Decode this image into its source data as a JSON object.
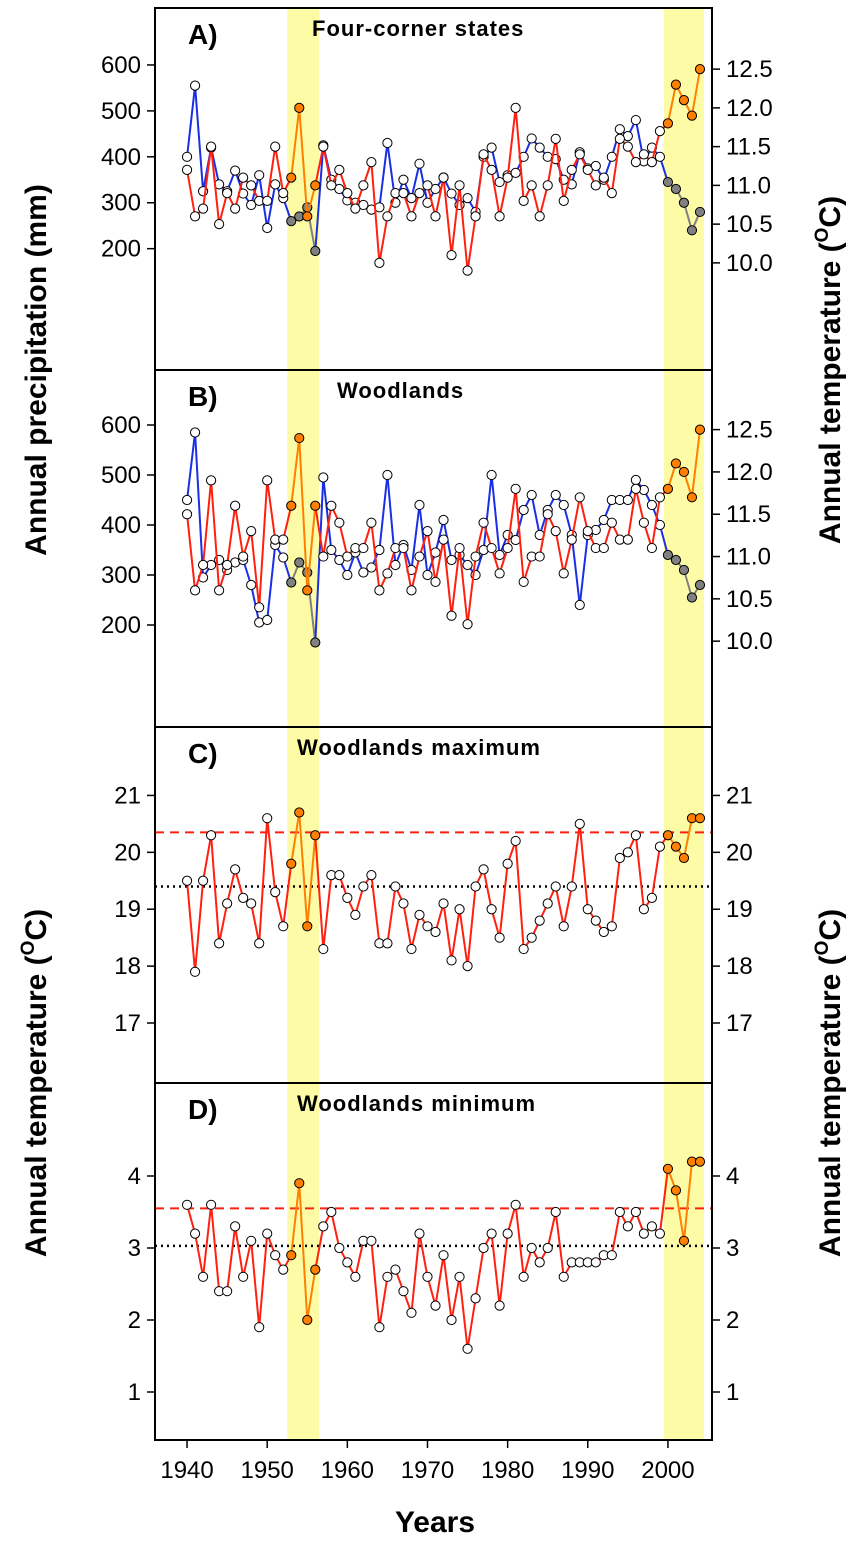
{
  "chart_data": {
    "type": "line",
    "x_label": "Years",
    "x_ticks": [
      1940,
      1950,
      1960,
      1970,
      1980,
      1990,
      2000
    ],
    "x_range": [
      1936,
      2005.5
    ],
    "highlight_ranges": [
      [
        1952.5,
        1956.5
      ],
      [
        1999.5,
        2004.5
      ]
    ],
    "colors": {
      "temperature": "#ff2010",
      "precipitation": "#1a2fe6",
      "drought_temperature": "#ff7f00",
      "drought_precipitation": "#808080",
      "highlight": "#fdfba5",
      "mean_line": "#000000",
      "threshold_line": "#ff2010"
    },
    "left_axis_label": {
      "top": "Annual precipitation (mm)",
      "bottom_prefix": "Annual temperature (",
      "bottom_sup": "O",
      "bottom_suffix": "C)"
    },
    "right_axis_label": {
      "top_prefix": "Annual temperature (",
      "top_sup": "O",
      "top_suffix": "C)",
      "bottom_prefix": "Annual temperature (",
      "bottom_sup": "O",
      "bottom_suffix": "C)"
    },
    "panels": [
      {
        "label": "A)",
        "title": "Four-corner states",
        "left_ticks": [
          "600",
          "500",
          "400",
          "300",
          "200"
        ],
        "right_ticks": [
          "12.5",
          "12.0",
          "11.5",
          "11.0",
          "10.5",
          "10.0"
        ],
        "left_range": [
          110,
          650
        ],
        "right_range": [
          9.65,
          12.85
        ],
        "series": [
          {
            "name": "Annual temperature",
            "axis": "right",
            "x": [
              1940,
              1941,
              1942,
              1943,
              1944,
              1945,
              1946,
              1947,
              1948,
              1949,
              1950,
              1951,
              1952,
              1953,
              1954,
              1955,
              1956,
              1957,
              1958,
              1959,
              1960,
              1961,
              1962,
              1963,
              1964,
              1965,
              1966,
              1967,
              1968,
              1969,
              1970,
              1971,
              1972,
              1973,
              1974,
              1975,
              1976,
              1977,
              1978,
              1979,
              1980,
              1981,
              1982,
              1983,
              1984,
              1985,
              1986,
              1987,
              1988,
              1989,
              1990,
              1991,
              1992,
              1993,
              1994,
              1995,
              1996,
              1997,
              1998,
              1999,
              2000,
              2001,
              2002,
              2003,
              2004
            ],
            "y": [
              11.2,
              10.6,
              10.7,
              11.5,
              10.5,
              10.9,
              10.7,
              11.1,
              11.0,
              10.8,
              10.8,
              11.5,
              10.9,
              11.1,
              12.0,
              10.6,
              11.0,
              11.5,
              11.0,
              11.2,
              10.9,
              10.7,
              11.0,
              11.3,
              10.0,
              10.6,
              10.9,
              10.9,
              10.6,
              10.9,
              11.0,
              10.6,
              11.1,
              10.1,
              11.0,
              9.9,
              10.6,
              11.4,
              11.2,
              10.6,
              11.1,
              12.0,
              10.8,
              11.0,
              10.6,
              11.0,
              11.6,
              10.8,
              11.2,
              11.4,
              11.2,
              11.0,
              11.1,
              10.9,
              11.6,
              11.5,
              11.3,
              11.4,
              11.3,
              11.7,
              11.8,
              12.3,
              12.1,
              11.9,
              12.5
            ]
          },
          {
            "name": "Annual precipitation",
            "axis": "left",
            "x": [
              1940,
              1941,
              1942,
              1943,
              1944,
              1945,
              1946,
              1947,
              1948,
              1949,
              1950,
              1951,
              1952,
              1953,
              1954,
              1955,
              1956,
              1957,
              1958,
              1959,
              1960,
              1961,
              1962,
              1963,
              1964,
              1965,
              1966,
              1967,
              1968,
              1969,
              1970,
              1971,
              1972,
              1973,
              1974,
              1975,
              1976,
              1977,
              1978,
              1979,
              1980,
              1981,
              1982,
              1983,
              1984,
              1985,
              1986,
              1987,
              1988,
              1989,
              1990,
              1991,
              1992,
              1993,
              1994,
              1995,
              1996,
              1997,
              1998,
              1999,
              2000,
              2001,
              2002,
              2003,
              2004
            ],
            "y": [
              400,
              555,
              325,
              420,
              340,
              325,
              370,
              320,
              295,
              360,
              245,
              340,
              310,
              260,
              270,
              290,
              195,
              425,
              350,
              330,
              305,
              300,
              295,
              285,
              290,
              430,
              300,
              350,
              310,
              385,
              300,
              330,
              355,
              320,
              295,
              310,
              280,
              400,
              420,
              345,
              360,
              365,
              400,
              440,
              420,
              400,
              395,
              350,
              340,
              410,
              375,
              380,
              350,
              400,
              460,
              445,
              480,
              390,
              420,
              400,
              345,
              330,
              300,
              240,
              280
            ]
          }
        ]
      },
      {
        "label": "B)",
        "title": "Woodlands",
        "left_ticks": [
          "600",
          "500",
          "400",
          "300",
          "200"
        ],
        "right_ticks": [
          "12.5",
          "12.0",
          "11.5",
          "11.0",
          "10.5",
          "10.0"
        ],
        "left_range": [
          100,
          650
        ],
        "right_range": [
          9.6,
          12.85
        ],
        "series": [
          {
            "name": "Annual temperature",
            "axis": "right",
            "x": [
              1940,
              1941,
              1942,
              1943,
              1944,
              1945,
              1946,
              1947,
              1948,
              1949,
              1950,
              1951,
              1952,
              1953,
              1954,
              1955,
              1956,
              1957,
              1958,
              1959,
              1960,
              1961,
              1962,
              1963,
              1964,
              1965,
              1966,
              1967,
              1968,
              1969,
              1970,
              1971,
              1972,
              1973,
              1974,
              1975,
              1976,
              1977,
              1978,
              1979,
              1980,
              1981,
              1982,
              1983,
              1984,
              1985,
              1986,
              1987,
              1988,
              1989,
              1990,
              1991,
              1992,
              1993,
              1994,
              1995,
              1996,
              1997,
              1998,
              1999,
              2000,
              2001,
              2002,
              2003,
              2004
            ],
            "y": [
              11.5,
              10.6,
              10.9,
              11.9,
              10.6,
              10.9,
              11.6,
              11.0,
              11.3,
              10.4,
              11.9,
              11.2,
              11.2,
              11.6,
              12.4,
              10.6,
              11.6,
              11.0,
              11.6,
              11.4,
              11.0,
              11.1,
              11.1,
              11.4,
              10.6,
              10.8,
              11.1,
              11.1,
              10.6,
              11.0,
              11.3,
              10.7,
              11.2,
              10.3,
              11.1,
              10.2,
              11.0,
              11.4,
              11.1,
              10.8,
              11.1,
              11.8,
              10.7,
              11.0,
              11.0,
              11.5,
              11.3,
              10.8,
              11.2,
              11.7,
              11.3,
              11.1,
              11.1,
              11.4,
              11.2,
              11.2,
              11.8,
              11.4,
              11.1,
              11.7,
              11.8,
              12.1,
              12.0,
              11.7,
              12.5
            ]
          },
          {
            "name": "Annual precipitation",
            "axis": "left",
            "x": [
              1940,
              1941,
              1942,
              1943,
              1944,
              1945,
              1946,
              1947,
              1948,
              1949,
              1950,
              1951,
              1952,
              1953,
              1954,
              1955,
              1956,
              1957,
              1958,
              1959,
              1960,
              1961,
              1962,
              1963,
              1964,
              1965,
              1966,
              1967,
              1968,
              1969,
              1970,
              1971,
              1972,
              1973,
              1974,
              1975,
              1976,
              1977,
              1978,
              1979,
              1980,
              1981,
              1982,
              1983,
              1984,
              1985,
              1986,
              1987,
              1988,
              1989,
              1990,
              1991,
              1992,
              1993,
              1994,
              1995,
              1996,
              1997,
              1998,
              1999,
              2000,
              2001,
              2002,
              2003,
              2004
            ],
            "y": [
              450,
              585,
              295,
              320,
              330,
              310,
              325,
              330,
              280,
              205,
              210,
              360,
              335,
              285,
              325,
              305,
              165,
              495,
              350,
              330,
              300,
              345,
              305,
              315,
              350,
              500,
              320,
              360,
              310,
              440,
              300,
              345,
              410,
              330,
              340,
              320,
              300,
              350,
              500,
              340,
              380,
              370,
              430,
              460,
              380,
              430,
              460,
              440,
              380,
              240,
              380,
              390,
              410,
              450,
              450,
              450,
              490,
              470,
              440,
              400,
              340,
              330,
              310,
              255,
              280
            ]
          }
        ]
      },
      {
        "label": "C)",
        "title": "Woodlands maximum",
        "left_ticks": [
          "21",
          "20",
          "19",
          "18",
          "17"
        ],
        "right_ticks": [
          "21",
          "20",
          "19",
          "18",
          "17"
        ],
        "left_range": [
          17,
          21.5
        ],
        "right_range": [
          17,
          21.5
        ],
        "threshold": 20.35,
        "mean": 19.4,
        "series": [
          {
            "name": "Woodlands maximum temperature",
            "axis": "left",
            "x": [
              1940,
              1941,
              1942,
              1943,
              1944,
              1945,
              1946,
              1947,
              1948,
              1949,
              1950,
              1951,
              1952,
              1953,
              1954,
              1955,
              1956,
              1957,
              1958,
              1959,
              1960,
              1961,
              1962,
              1963,
              1964,
              1965,
              1966,
              1967,
              1968,
              1969,
              1970,
              1971,
              1972,
              1973,
              1974,
              1975,
              1976,
              1977,
              1978,
              1979,
              1980,
              1981,
              1982,
              1983,
              1984,
              1985,
              1986,
              1987,
              1988,
              1989,
              1990,
              1991,
              1992,
              1993,
              1994,
              1995,
              1996,
              1997,
              1998,
              1999,
              2000,
              2001,
              2002,
              2003,
              2004
            ],
            "y": [
              19.5,
              17.9,
              19.5,
              20.3,
              18.4,
              19.1,
              19.7,
              19.2,
              19.1,
              18.4,
              20.6,
              19.3,
              18.7,
              19.8,
              20.7,
              18.7,
              20.3,
              18.3,
              19.6,
              19.6,
              19.2,
              18.9,
              19.4,
              19.6,
              18.4,
              18.4,
              19.4,
              19.1,
              18.3,
              18.9,
              18.7,
              18.6,
              19.1,
              18.1,
              19.0,
              18.0,
              19.4,
              19.7,
              19.0,
              18.5,
              19.8,
              20.2,
              18.3,
              18.5,
              18.8,
              19.1,
              19.4,
              18.7,
              19.4,
              20.5,
              19.0,
              18.8,
              18.6,
              18.7,
              19.9,
              20.0,
              20.3,
              19.0,
              19.2,
              20.1,
              20.3,
              20.1,
              19.9,
              20.6,
              20.6
            ]
          }
        ]
      },
      {
        "label": "D)",
        "title": "Woodlands minimum",
        "left_ticks": [
          "4",
          "3",
          "2",
          "1"
        ],
        "right_ticks": [
          "4",
          "3",
          "2",
          "1"
        ],
        "left_range": [
          1,
          4.75
        ],
        "right_range": [
          1,
          4.75
        ],
        "threshold": 3.55,
        "mean": 3.03,
        "series": [
          {
            "name": "Woodlands minimum temperature",
            "axis": "left",
            "x": [
              1940,
              1941,
              1942,
              1943,
              1944,
              1945,
              1946,
              1947,
              1948,
              1949,
              1950,
              1951,
              1952,
              1953,
              1954,
              1955,
              1956,
              1957,
              1958,
              1959,
              1960,
              1961,
              1962,
              1963,
              1964,
              1965,
              1966,
              1967,
              1968,
              1969,
              1970,
              1971,
              1972,
              1973,
              1974,
              1975,
              1976,
              1977,
              1978,
              1979,
              1980,
              1981,
              1982,
              1983,
              1984,
              1985,
              1986,
              1987,
              1988,
              1989,
              1990,
              1991,
              1992,
              1993,
              1994,
              1995,
              1996,
              1997,
              1998,
              1999,
              2000,
              2001,
              2002,
              2003,
              2004
            ],
            "y": [
              3.6,
              3.2,
              2.6,
              3.6,
              2.4,
              2.4,
              3.3,
              2.6,
              3.1,
              1.9,
              3.2,
              2.9,
              2.7,
              2.9,
              3.9,
              2.0,
              2.7,
              3.3,
              3.5,
              3.0,
              2.8,
              2.6,
              3.1,
              3.1,
              1.9,
              2.6,
              2.7,
              2.4,
              2.1,
              3.2,
              2.6,
              2.2,
              2.9,
              2.0,
              2.6,
              1.6,
              2.3,
              3.0,
              3.2,
              2.2,
              3.2,
              3.6,
              2.6,
              3.0,
              2.8,
              3.0,
              3.5,
              2.6,
              2.8,
              2.8,
              2.8,
              2.8,
              2.9,
              2.9,
              3.5,
              3.3,
              3.5,
              3.2,
              3.3,
              3.2,
              4.1,
              3.8,
              3.1,
              4.2,
              4.2
            ]
          }
        ]
      }
    ]
  }
}
